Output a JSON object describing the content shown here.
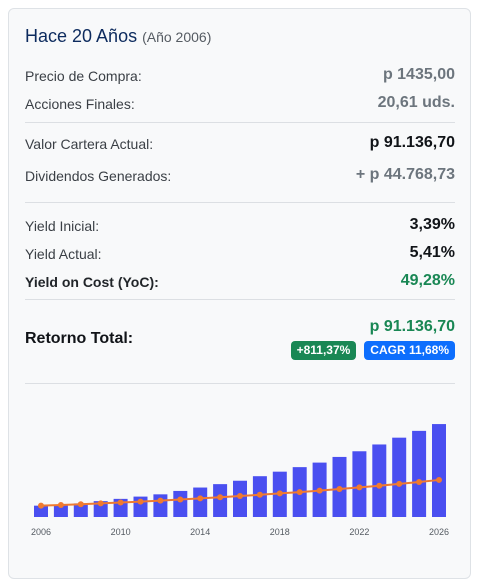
{
  "header": {
    "title": "Hace 20 Años",
    "subtitle": "(Año 2006)"
  },
  "purchase": {
    "price_label": "Precio de Compra:",
    "price_value": "p 1435,00",
    "shares_label": "Acciones Finales:",
    "shares_value": "20,61 uds."
  },
  "portfolio": {
    "value_label": "Valor Cartera Actual:",
    "value_value": "p 91.136,70",
    "dividends_label": "Dividendos Generados:",
    "dividends_value": "+ p 44.768,73"
  },
  "yields": {
    "initial_label": "Yield Inicial:",
    "initial_value": "3,39%",
    "current_label": "Yield Actual:",
    "current_value": "5,41%",
    "yoc_label": "Yield on Cost (YoC):",
    "yoc_value": "49,28%"
  },
  "total": {
    "label": "Retorno Total:",
    "value": "p 91.136,70",
    "badge_return": "+811,37%",
    "badge_cagr": "CAGR 11,68%"
  },
  "colors": {
    "bar": "#4a4ff0",
    "line": "#f07a30",
    "green": "#198754",
    "blue": "#0d6efd"
  },
  "chart_data": {
    "type": "bar",
    "x": [
      2006,
      2007,
      2008,
      2009,
      2010,
      2011,
      2012,
      2013,
      2014,
      2015,
      2016,
      2017,
      2018,
      2019,
      2020,
      2021,
      2022,
      2023,
      2024,
      2025,
      2026
    ],
    "tick_labels": [
      "2006",
      "2010",
      "2014",
      "2018",
      "2022",
      "2026"
    ],
    "series": [
      {
        "type": "bar",
        "values": [
          10,
          11,
          12,
          14,
          16,
          18,
          20,
          23,
          26,
          29,
          32,
          36,
          40,
          44,
          48,
          53,
          58,
          64,
          70,
          76,
          82
        ]
      },
      {
        "type": "line",
        "values": [
          10,
          10.6,
          11.3,
          12,
          12.8,
          13.6,
          14.5,
          15.4,
          16.4,
          17.4,
          18.5,
          19.6,
          20.8,
          22,
          23.3,
          24.7,
          26.1,
          27.6,
          29.2,
          30.9,
          32.7
        ]
      }
    ],
    "ylim": [
      0,
      90
    ],
    "grid": false
  }
}
